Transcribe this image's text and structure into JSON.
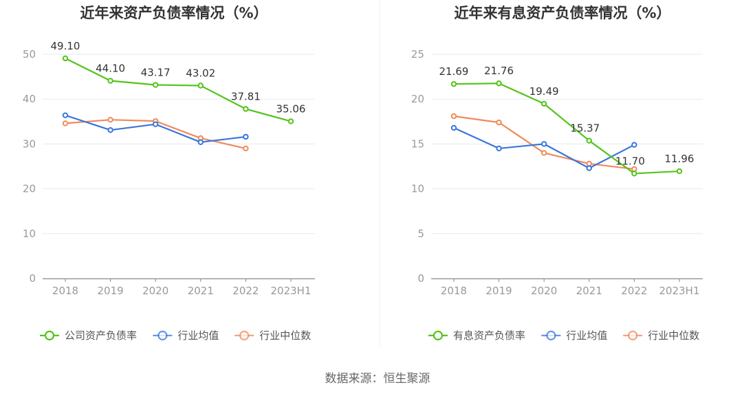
{
  "source": "数据来源：恒生聚源",
  "chart_data": [
    {
      "type": "line",
      "title": "近年来资产负债率情况（%）",
      "categories": [
        "2018",
        "2019",
        "2020",
        "2021",
        "2022",
        "2023H1"
      ],
      "ylim": [
        0,
        50
      ],
      "yticks": [
        0,
        10,
        20,
        30,
        40,
        50
      ],
      "grid": true,
      "legend_position": "bottom",
      "series": [
        {
          "name": "公司资产负债率",
          "color": "#52c41a",
          "values": [
            49.1,
            44.1,
            43.17,
            43.02,
            37.81,
            35.06
          ],
          "labels": [
            "49.10",
            "44.10",
            "43.17",
            "43.02",
            "37.81",
            "35.06"
          ]
        },
        {
          "name": "行业均值",
          "color": "#3a75db",
          "values": [
            36.4,
            33.1,
            34.4,
            30.4,
            31.6,
            null
          ]
        },
        {
          "name": "行业中位数",
          "color": "#f0895a",
          "values": [
            34.6,
            35.4,
            35.1,
            31.3,
            29.0,
            null
          ]
        }
      ]
    },
    {
      "type": "line",
      "title": "近年来有息资产负债率情况（%）",
      "categories": [
        "2018",
        "2019",
        "2020",
        "2021",
        "2022",
        "2023H1"
      ],
      "ylim": [
        0,
        25
      ],
      "yticks": [
        0,
        5,
        10,
        15,
        20,
        25
      ],
      "grid": true,
      "legend_position": "bottom",
      "series": [
        {
          "name": "有息资产负债率",
          "color": "#52c41a",
          "values": [
            21.69,
            21.76,
            19.49,
            15.37,
            11.7,
            11.96
          ],
          "labels": [
            "21.69",
            "21.76",
            "19.49",
            "15.37",
            "11.70",
            "11.96"
          ]
        },
        {
          "name": "行业均值",
          "color": "#3a75db",
          "values": [
            16.8,
            14.5,
            15.0,
            12.3,
            14.9,
            null
          ]
        },
        {
          "name": "行业中位数",
          "color": "#f0895a",
          "values": [
            18.1,
            17.4,
            14.0,
            12.8,
            12.2,
            null
          ]
        }
      ]
    }
  ]
}
